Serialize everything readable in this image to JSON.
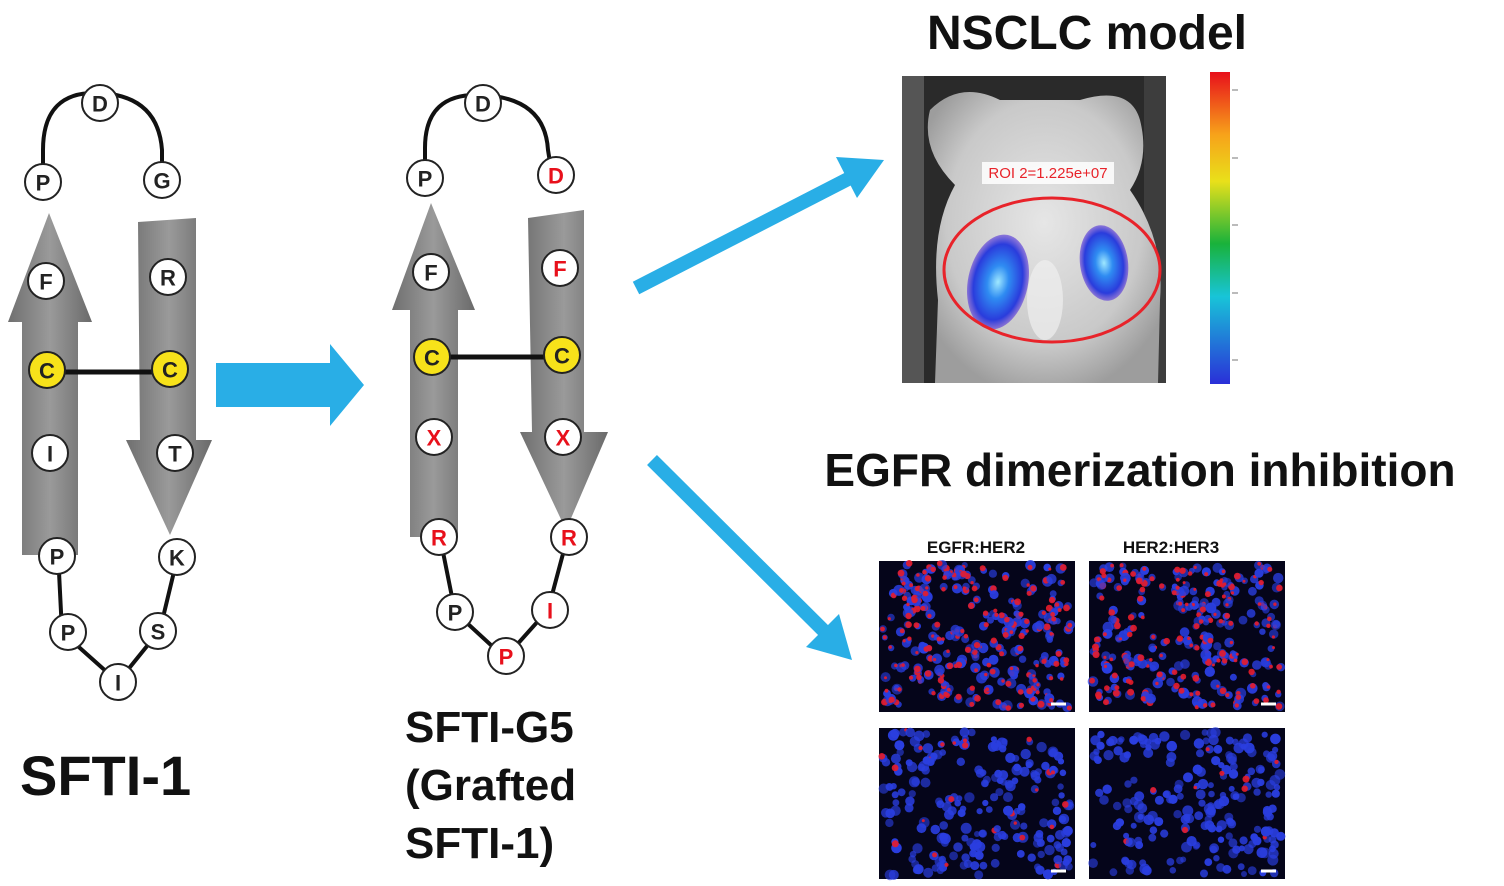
{
  "colors": {
    "arrow": "#29aee6",
    "strand": "#8a8a8a",
    "highlight_fill": "#f7e21a",
    "mutated_text": "#e8101b",
    "normal_text": "#222222",
    "nucleus": "#2a3ee0",
    "dimer_signal": "#e81c2a"
  },
  "left_structure": {
    "label": "SFTI-1",
    "residues": [
      {
        "letter": "D",
        "style": "normal"
      },
      {
        "letter": "P",
        "style": "normal"
      },
      {
        "letter": "G",
        "style": "normal"
      },
      {
        "letter": "F",
        "style": "normal"
      },
      {
        "letter": "R",
        "style": "normal"
      },
      {
        "letter": "C",
        "style": "highlight"
      },
      {
        "letter": "C",
        "style": "highlight"
      },
      {
        "letter": "I",
        "style": "normal"
      },
      {
        "letter": "T",
        "style": "normal"
      },
      {
        "letter": "P",
        "style": "normal"
      },
      {
        "letter": "K",
        "style": "normal"
      },
      {
        "letter": "P",
        "style": "normal"
      },
      {
        "letter": "S",
        "style": "normal"
      },
      {
        "letter": "I",
        "style": "normal"
      }
    ]
  },
  "right_structure": {
    "label_lines": [
      "SFTI-G5",
      "(Grafted",
      "SFTI-1)"
    ],
    "residues": [
      {
        "letter": "D",
        "style": "normal"
      },
      {
        "letter": "P",
        "style": "normal"
      },
      {
        "letter": "D",
        "style": "mutated"
      },
      {
        "letter": "F",
        "style": "normal"
      },
      {
        "letter": "F",
        "style": "mutated"
      },
      {
        "letter": "C",
        "style": "highlight"
      },
      {
        "letter": "C",
        "style": "highlight"
      },
      {
        "letter": "X",
        "style": "mutated"
      },
      {
        "letter": "X",
        "style": "mutated"
      },
      {
        "letter": "R",
        "style": "mutated"
      },
      {
        "letter": "R",
        "style": "mutated"
      },
      {
        "letter": "P",
        "style": "normal"
      },
      {
        "letter": "I",
        "style": "mutated"
      },
      {
        "letter": "P",
        "style": "mutated"
      }
    ]
  },
  "nsclc_panel": {
    "title": "NSCLC model",
    "roi_label": "ROI 2=1.225e+07"
  },
  "egfr_panel": {
    "title": "EGFR dimerization inhibition",
    "column_labels": [
      "EGFR:HER2",
      "HER2:HER3"
    ]
  }
}
